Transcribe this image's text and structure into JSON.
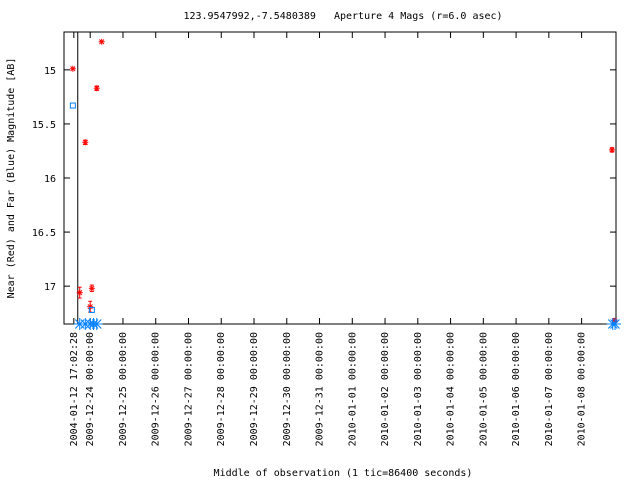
{
  "chart_data": {
    "type": "scatter",
    "title": "123.9547992,-7.5480389   Aperture 4 Mags (r=6.0 asec)",
    "xlabel": "Middle of observation (1 tic=86400 seconds)",
    "ylabel": "Near (Red) and Far (Blue) Magnitude [AB]",
    "y_inverted": true,
    "ylim": [
      17.35,
      14.65
    ],
    "xlim": [
      -0.3,
      16.55
    ],
    "y_ticks": [
      15,
      15.5,
      16,
      16.5,
      17
    ],
    "y_tick_labels": [
      "15",
      "15.5",
      "16",
      "16.5",
      "17"
    ],
    "x_ticks": [
      0,
      0.5,
      1.5,
      2.5,
      3.5,
      4.5,
      5.5,
      6.5,
      7.5,
      8.5,
      9.5,
      10.5,
      11.5,
      12.5,
      13.5,
      14.5,
      15.5
    ],
    "x_tick_labels": [
      "2004-01-12 17:02:28",
      "2009-12-24 00:00:00",
      "2009-12-25 00:00:00",
      "2009-12-26 00:00:00",
      "2009-12-27 00:00:00",
      "2009-12-28 00:00:00",
      "2009-12-29 00:00:00",
      "2009-12-30 00:00:00",
      "2009-12-31 00:00:00",
      "2010-01-01 00:00:00",
      "2010-01-02 00:00:00",
      "2010-01-03 00:00:00",
      "2010-01-04 00:00:00",
      "2010-01-05 00:00:00",
      "2010-01-06 00:00:00",
      "2010-01-07 00:00:00",
      "2010-01-08 00:00:00"
    ],
    "series": [
      {
        "color": "#ff0000",
        "marker": "star",
        "points": [
          {
            "x": -0.03,
            "y": 14.99
          },
          {
            "x": 0.18,
            "y": 17.06,
            "err": 0.05
          },
          {
            "x": 0.35,
            "y": 15.67,
            "err": 0.02
          },
          {
            "x": 0.5,
            "y": 17.19,
            "err": 0.05
          },
          {
            "x": 0.55,
            "y": 17.02,
            "err": 0.03
          },
          {
            "x": 0.7,
            "y": 15.17,
            "err": 0.02
          },
          {
            "x": 0.85,
            "y": 14.74
          },
          {
            "x": 16.43,
            "y": 15.74,
            "err": 0.02
          },
          {
            "x": 16.5,
            "y": 17.32,
            "err": 0.02
          }
        ]
      },
      {
        "color": "#0080ff",
        "marker": "box",
        "points": [
          {
            "x": -0.03,
            "y": 15.33
          },
          {
            "x": 0.55,
            "y": 17.22
          }
        ]
      },
      {
        "color": "#0080ff",
        "marker": "star",
        "points": [
          {
            "x": 0.18,
            "y": 17.35
          },
          {
            "x": 0.35,
            "y": 17.35
          },
          {
            "x": 0.5,
            "y": 17.35
          },
          {
            "x": 0.6,
            "y": 17.35
          },
          {
            "x": 0.7,
            "y": 17.35
          },
          {
            "x": 16.45,
            "y": 17.35
          },
          {
            "x": 16.52,
            "y": 17.35
          }
        ]
      }
    ],
    "vertical_marker_x": [
      0.12
    ],
    "grid": false,
    "legend": "none"
  }
}
